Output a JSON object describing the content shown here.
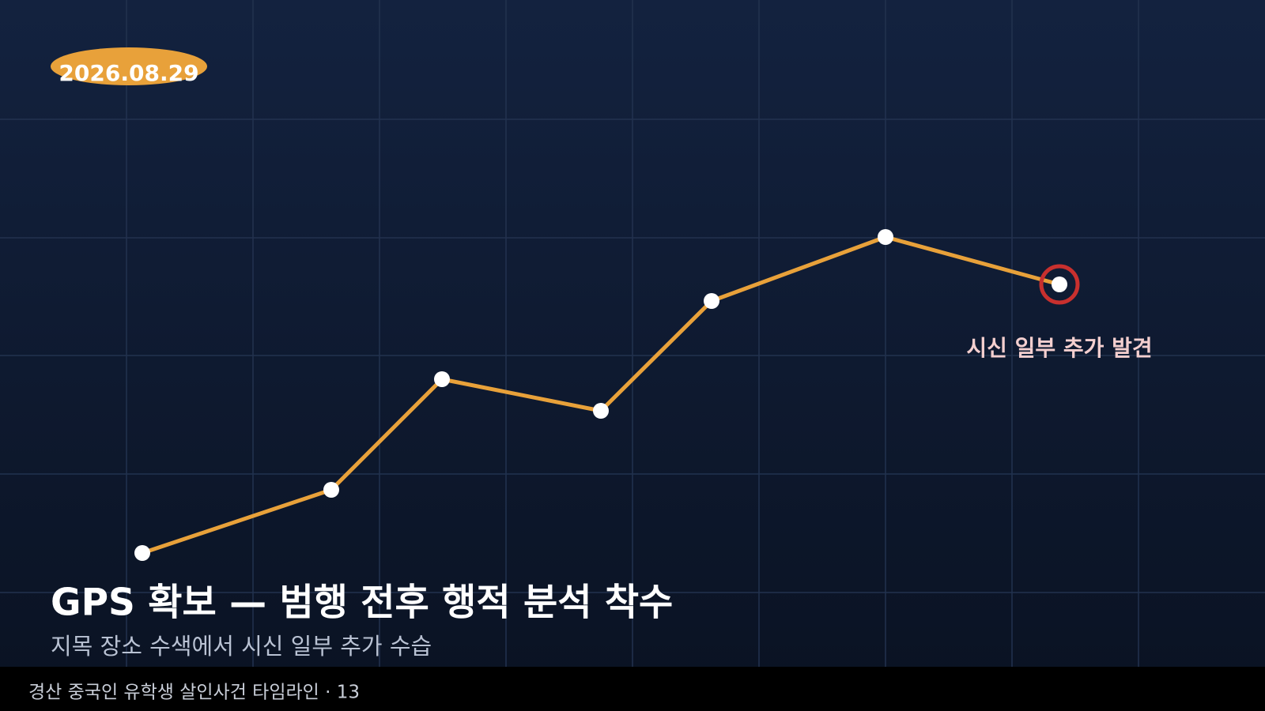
{
  "date": "2026.08.29",
  "annotation": "시신 일부 추가 발견",
  "headline": {
    "title": "GPS 확보 — 범행 전후 행적 분석 착수",
    "subtitle": "지목 장소 수색에서 시신 일부 추가 수습"
  },
  "footer": "경산 중국인 유학생 살인사건 타임라인 · 13"
}
